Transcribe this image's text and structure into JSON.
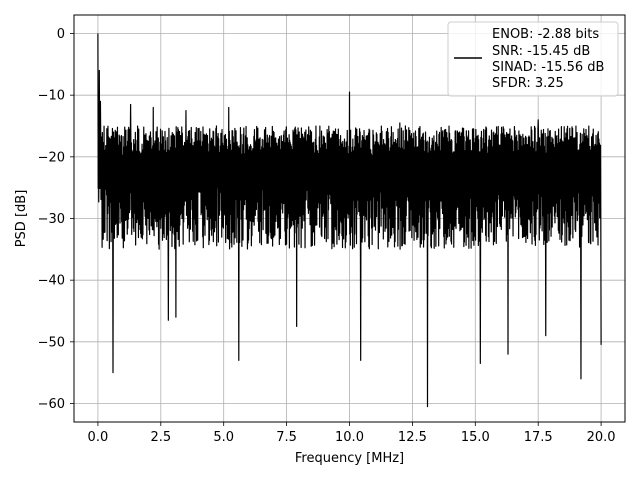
{
  "chart_data": {
    "type": "line",
    "title": "",
    "xlabel": "Frequency [MHz]",
    "ylabel": "PSD [dB]",
    "xlim": [
      -0.95,
      20.95
    ],
    "ylim": [
      -63.0,
      3.0
    ],
    "xticks": [
      0.0,
      2.5,
      5.0,
      7.5,
      10.0,
      12.5,
      15.0,
      17.5,
      20.0
    ],
    "xtick_labels": [
      "0.0",
      "2.5",
      "5.0",
      "7.5",
      "10.0",
      "12.5",
      "15.0",
      "17.5",
      "20.0"
    ],
    "yticks": [
      0,
      -10,
      -20,
      -30,
      -40,
      -50,
      -60
    ],
    "ytick_labels": [
      "0",
      "−10",
      "−20",
      "−30",
      "−40",
      "−50",
      "−60"
    ],
    "grid": true,
    "legend_position": "top-right",
    "legend_entries": [
      "ENOB: -2.88 bits",
      "SNR: -15.45 dB",
      "SINAD: -15.56 dB",
      "SFDR: 3.25"
    ],
    "series": [
      {
        "color": "#000000",
        "x_range": [
          0.0,
          20.0
        ],
        "trace_band_db": [
          -35.0,
          -15.0
        ],
        "peaks": [
          {
            "x": 0.0,
            "y": 0.0
          },
          {
            "x": 0.05,
            "y": -6.0
          },
          {
            "x": 0.1,
            "y": -11.0
          },
          {
            "x": 10.0,
            "y": -9.5
          },
          {
            "x": 1.3,
            "y": -11.5
          },
          {
            "x": 2.2,
            "y": -12.0
          },
          {
            "x": 3.5,
            "y": -12.5
          },
          {
            "x": 5.2,
            "y": -12.0
          },
          {
            "x": 7.9,
            "y": -13.5
          },
          {
            "x": 12.0,
            "y": -14.5
          },
          {
            "x": 17.5,
            "y": -14.0
          },
          {
            "x": 19.2,
            "y": -15.0
          }
        ],
        "dips": [
          {
            "x": 0.6,
            "y": -55.0
          },
          {
            "x": 2.8,
            "y": -46.5
          },
          {
            "x": 3.1,
            "y": -46.0
          },
          {
            "x": 5.6,
            "y": -53.0
          },
          {
            "x": 7.9,
            "y": -47.5
          },
          {
            "x": 10.45,
            "y": -53.0
          },
          {
            "x": 13.1,
            "y": -60.5
          },
          {
            "x": 15.2,
            "y": -53.5
          },
          {
            "x": 16.3,
            "y": -52.0
          },
          {
            "x": 17.8,
            "y": -49.0
          },
          {
            "x": 19.2,
            "y": -56.0
          },
          {
            "x": 20.0,
            "y": -50.5
          }
        ]
      }
    ]
  }
}
